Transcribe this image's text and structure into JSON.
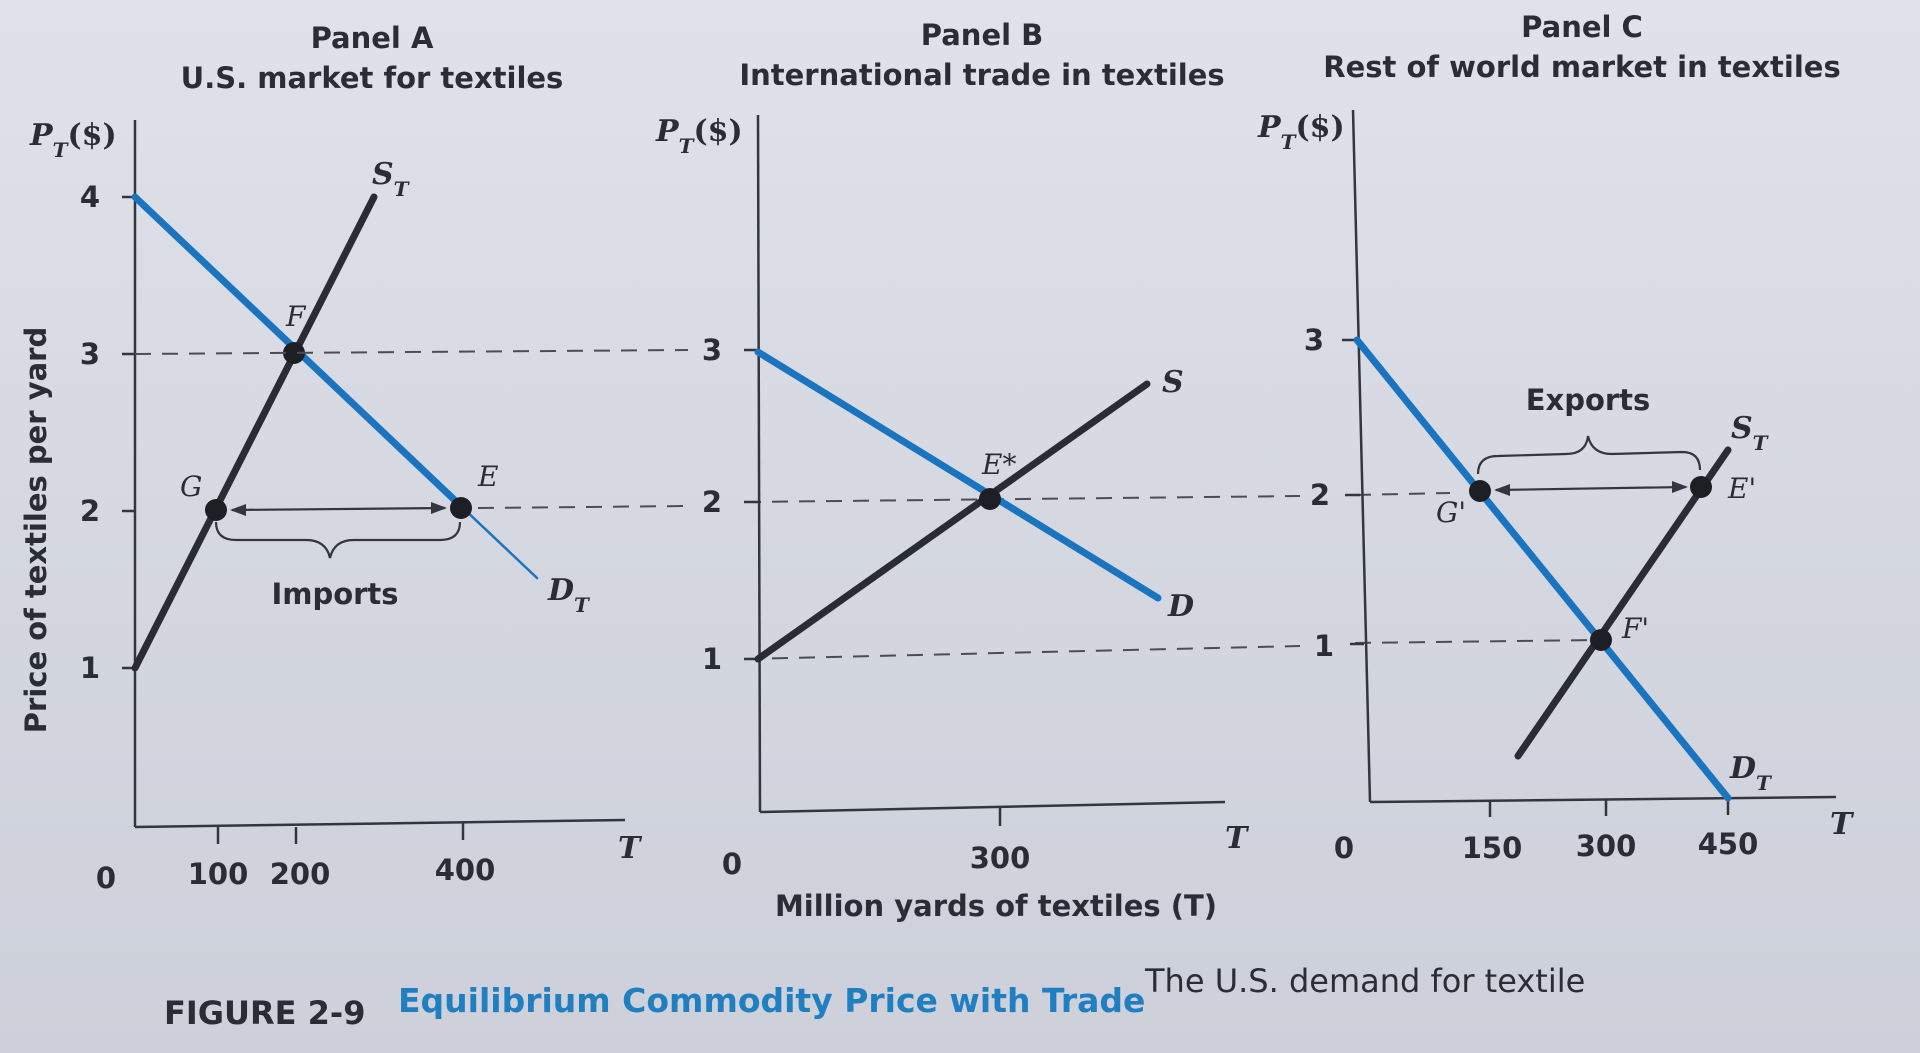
{
  "chart_data": [
    {
      "type": "line",
      "panel_label": "Panel A",
      "title": "U.S. market for textiles",
      "ylabel_top": "P_T($)",
      "xlabel_end": "T",
      "ylim": [
        0,
        4
      ],
      "yticks": [
        1,
        2,
        3,
        4
      ],
      "xticks": [
        100,
        200,
        400
      ],
      "origin_label": "0",
      "series": [
        {
          "name": "D_T",
          "points": [
            [
              0,
              4
            ],
            [
              400,
              2
            ],
            [
              520,
              1.4
            ]
          ]
        },
        {
          "name": "S_T",
          "points": [
            [
              0,
              1
            ],
            [
              300,
              4.3
            ]
          ]
        }
      ],
      "points": [
        {
          "label": "F",
          "x": 200,
          "y": 3
        },
        {
          "label": "G",
          "x": 100,
          "y": 2
        },
        {
          "label": "E",
          "x": 400,
          "y": 2
        }
      ],
      "annotation": "Imports"
    },
    {
      "type": "line",
      "panel_label": "Panel B",
      "title": "International trade in textiles",
      "ylabel_top": "P_T($)",
      "xlabel_end": "T",
      "xlabel": "Million yards of textiles (T)",
      "yticks": [
        1,
        2,
        3
      ],
      "xticks": [
        300
      ],
      "origin_label": "0",
      "series": [
        {
          "name": "D",
          "points": [
            [
              0,
              3
            ],
            [
              300,
              2
            ],
            [
              500,
              1.35
            ]
          ]
        },
        {
          "name": "S",
          "points": [
            [
              0,
              1
            ],
            [
              300,
              2
            ],
            [
              500,
              2.7
            ]
          ]
        }
      ],
      "points": [
        {
          "label": "E*",
          "x": 300,
          "y": 2
        }
      ]
    },
    {
      "type": "line",
      "panel_label": "Panel C",
      "title": "Rest of world market in textiles",
      "ylabel_top": "P_T($)",
      "xlabel_end": "T",
      "yticks": [
        1,
        2,
        3
      ],
      "xticks": [
        150,
        300,
        450
      ],
      "origin_label": "0",
      "series": [
        {
          "name": "D_T",
          "points": [
            [
              0,
              3
            ],
            [
              450,
              0
            ]
          ]
        },
        {
          "name": "S_T",
          "points": [
            [
              180,
              0.3
            ],
            [
              475,
              2.25
            ]
          ]
        }
      ],
      "points": [
        {
          "label": "G'",
          "x": 150,
          "y": 2
        },
        {
          "label": "E'",
          "x": 450,
          "y": 2
        },
        {
          "label": "F'",
          "x": 300,
          "y": 1
        }
      ],
      "annotation": "Exports"
    }
  ],
  "shared": {
    "y_axis_label": "Price of textiles per yard"
  },
  "caption": {
    "number": "FIGURE 2-9",
    "title": "Equilibrium Commodity Price with Trade",
    "text": "The U.S. demand for textile"
  },
  "labels": {
    "a_ylabel_main": "P",
    "b_ylabel_main": "P",
    "c_ylabel_main": "P",
    "sub_T": "T",
    "paren_dollar": "($)",
    "a_S_main": "S",
    "a_D_main": "D",
    "b_S": "S",
    "b_D": "D",
    "c_S_main": "S",
    "c_D_main": "D"
  }
}
